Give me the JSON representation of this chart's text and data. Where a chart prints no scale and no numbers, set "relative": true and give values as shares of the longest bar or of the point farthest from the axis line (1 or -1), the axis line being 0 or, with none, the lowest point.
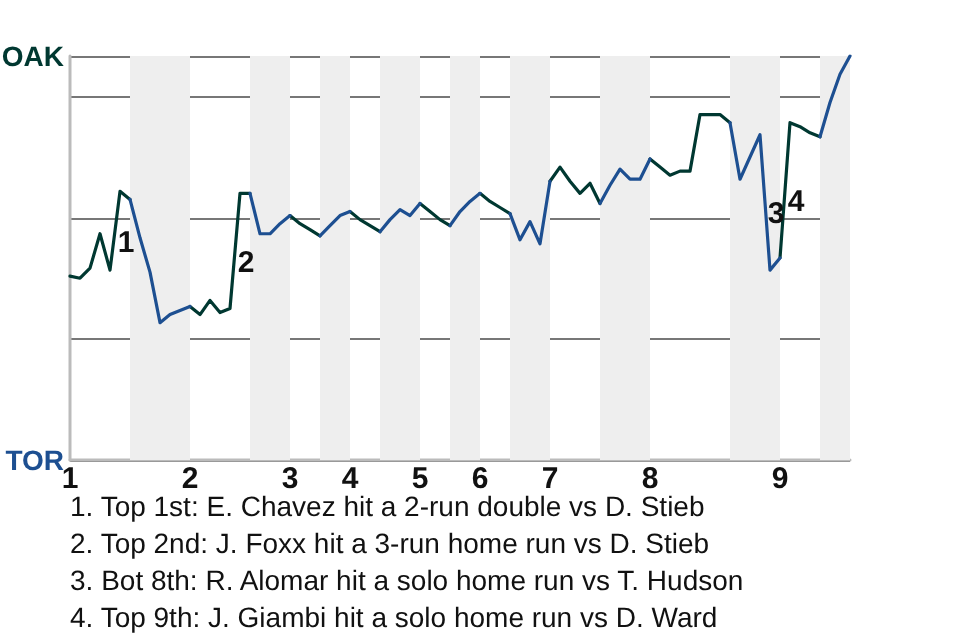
{
  "chart_data": {
    "type": "line",
    "relative": true,
    "categories": [
      "1",
      null,
      null,
      null,
      null,
      null,
      null,
      null,
      null,
      null,
      null,
      null,
      "2",
      null,
      null,
      null,
      null,
      null,
      null,
      null,
      null,
      null,
      "3",
      null,
      null,
      null,
      null,
      null,
      "4",
      null,
      null,
      null,
      null,
      null,
      null,
      "5",
      null,
      null,
      null,
      null,
      null,
      "6",
      null,
      null,
      null,
      null,
      null,
      null,
      "7",
      null,
      null,
      null,
      null,
      null,
      null,
      null,
      null,
      null,
      "8",
      null,
      null,
      null,
      null,
      null,
      null,
      null,
      null,
      null,
      null,
      null,
      null,
      "9",
      null,
      null,
      null,
      null,
      null,
      null,
      null
    ],
    "grid": "y",
    "line_style": "solid",
    "marker": "none",
    "series": [
      {
        "color": "#003831",
        "values": [
          0.455,
          0.45,
          0.475,
          0.56,
          0.47,
          0.665,
          0.645,
          null,
          null,
          null,
          null,
          null,
          0.38,
          0.36,
          0.395,
          0.365,
          0.375,
          0.66,
          0.66,
          null,
          null,
          null,
          0.605,
          0.585,
          0.57,
          0.555,
          null,
          null,
          0.615,
          0.595,
          0.58,
          0.565,
          null,
          null,
          null,
          0.635,
          0.615,
          0.595,
          0.58,
          null,
          null,
          0.66,
          0.64,
          0.625,
          0.61,
          null,
          null,
          null,
          0.69,
          0.725,
          0.69,
          0.66,
          0.685,
          0.635,
          null,
          null,
          null,
          null,
          0.745,
          0.725,
          0.705,
          0.715,
          0.715,
          0.855,
          0.855,
          0.855,
          0.835,
          null,
          null,
          null,
          null,
          0.5,
          0.835,
          0.825,
          0.81,
          0.8,
          null,
          null,
          null
        ]
      },
      {
        "color": "#1d4f91",
        "values": [
          null,
          null,
          null,
          null,
          null,
          null,
          0.645,
          0.55,
          0.465,
          0.34,
          0.36,
          0.37,
          0.38,
          null,
          null,
          null,
          null,
          null,
          0.66,
          0.56,
          0.56,
          0.585,
          0.605,
          null,
          null,
          0.555,
          0.58,
          0.605,
          0.615,
          null,
          null,
          0.565,
          0.595,
          0.62,
          0.605,
          0.635,
          null,
          null,
          0.58,
          0.615,
          0.64,
          0.66,
          null,
          null,
          0.61,
          0.545,
          0.59,
          0.535,
          0.69,
          null,
          null,
          null,
          null,
          0.635,
          0.68,
          0.72,
          0.695,
          0.695,
          0.745,
          null,
          null,
          null,
          null,
          null,
          null,
          null,
          0.835,
          0.695,
          0.75,
          0.805,
          0.47,
          0.5,
          null,
          null,
          null,
          0.8,
          0.885,
          0.955,
          1.0
        ]
      }
    ],
    "annotations": [
      "OAK",
      "TOR",
      "1",
      "2",
      "3",
      "4",
      "1. Top 1st: E. Chavez hit a 2-run double vs D. Stieb",
      "2. Top 2nd: J. Foxx hit a 3-run home run vs D. Stieb",
      "3. Bot 8th: R. Alomar hit a solo home run vs T. Hudson",
      "4. Top 9th: J. Giambi hit a solo home run vs D. Ward"
    ]
  }
}
